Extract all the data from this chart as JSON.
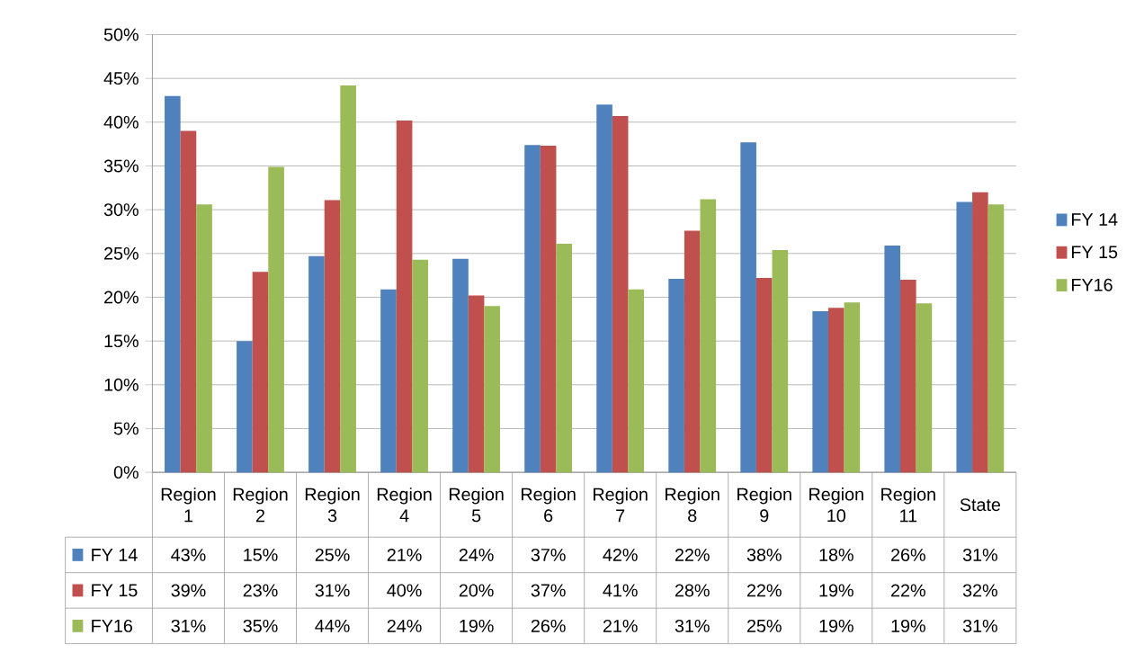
{
  "chart_data": {
    "type": "bar",
    "categories": [
      "Region 1",
      "Region 2",
      "Region 3",
      "Region 4",
      "Region 5",
      "Region 6",
      "Region 7",
      "Region 8",
      "Region 9",
      "Region 10",
      "Region 11",
      "State"
    ],
    "series": [
      {
        "name": "FY 14",
        "color": "#4f81bd",
        "values": [
          43.0,
          15.0,
          24.7,
          20.9,
          24.4,
          37.4,
          42.0,
          22.1,
          37.7,
          18.4,
          25.9,
          30.9
        ],
        "value_labels": [
          "43%",
          "15%",
          "25%",
          "21%",
          "24%",
          "37%",
          "42%",
          "22%",
          "38%",
          "18%",
          "26%",
          "31%"
        ]
      },
      {
        "name": "FY 15",
        "color": "#c0504d",
        "values": [
          39.0,
          22.9,
          31.1,
          40.2,
          20.2,
          37.3,
          40.7,
          27.6,
          22.2,
          18.8,
          22.0,
          32.0
        ],
        "value_labels": [
          "39%",
          "23%",
          "31%",
          "40%",
          "20%",
          "37%",
          "41%",
          "28%",
          "22%",
          "19%",
          "22%",
          "32%"
        ]
      },
      {
        "name": "FY16",
        "color": "#9bbb59",
        "values": [
          30.6,
          34.9,
          44.2,
          24.3,
          19.0,
          26.1,
          20.9,
          31.2,
          25.4,
          19.4,
          19.3,
          30.6
        ],
        "value_labels": [
          "31%",
          "35%",
          "44%",
          "24%",
          "19%",
          "26%",
          "21%",
          "31%",
          "25%",
          "19%",
          "19%",
          "31%"
        ]
      }
    ],
    "ylim": [
      0,
      50
    ],
    "yticks": [
      {
        "value": 0,
        "label": "0%"
      },
      {
        "value": 5,
        "label": "5%"
      },
      {
        "value": 10,
        "label": "10%"
      },
      {
        "value": 15,
        "label": "15%"
      },
      {
        "value": 20,
        "label": "20%"
      },
      {
        "value": 25,
        "label": "25%"
      },
      {
        "value": 30,
        "label": "30%"
      },
      {
        "value": 35,
        "label": "35%"
      },
      {
        "value": 40,
        "label": "40%"
      },
      {
        "value": 45,
        "label": "45%"
      },
      {
        "value": 50,
        "label": "50%"
      }
    ],
    "grid": "y",
    "legend": "right"
  }
}
